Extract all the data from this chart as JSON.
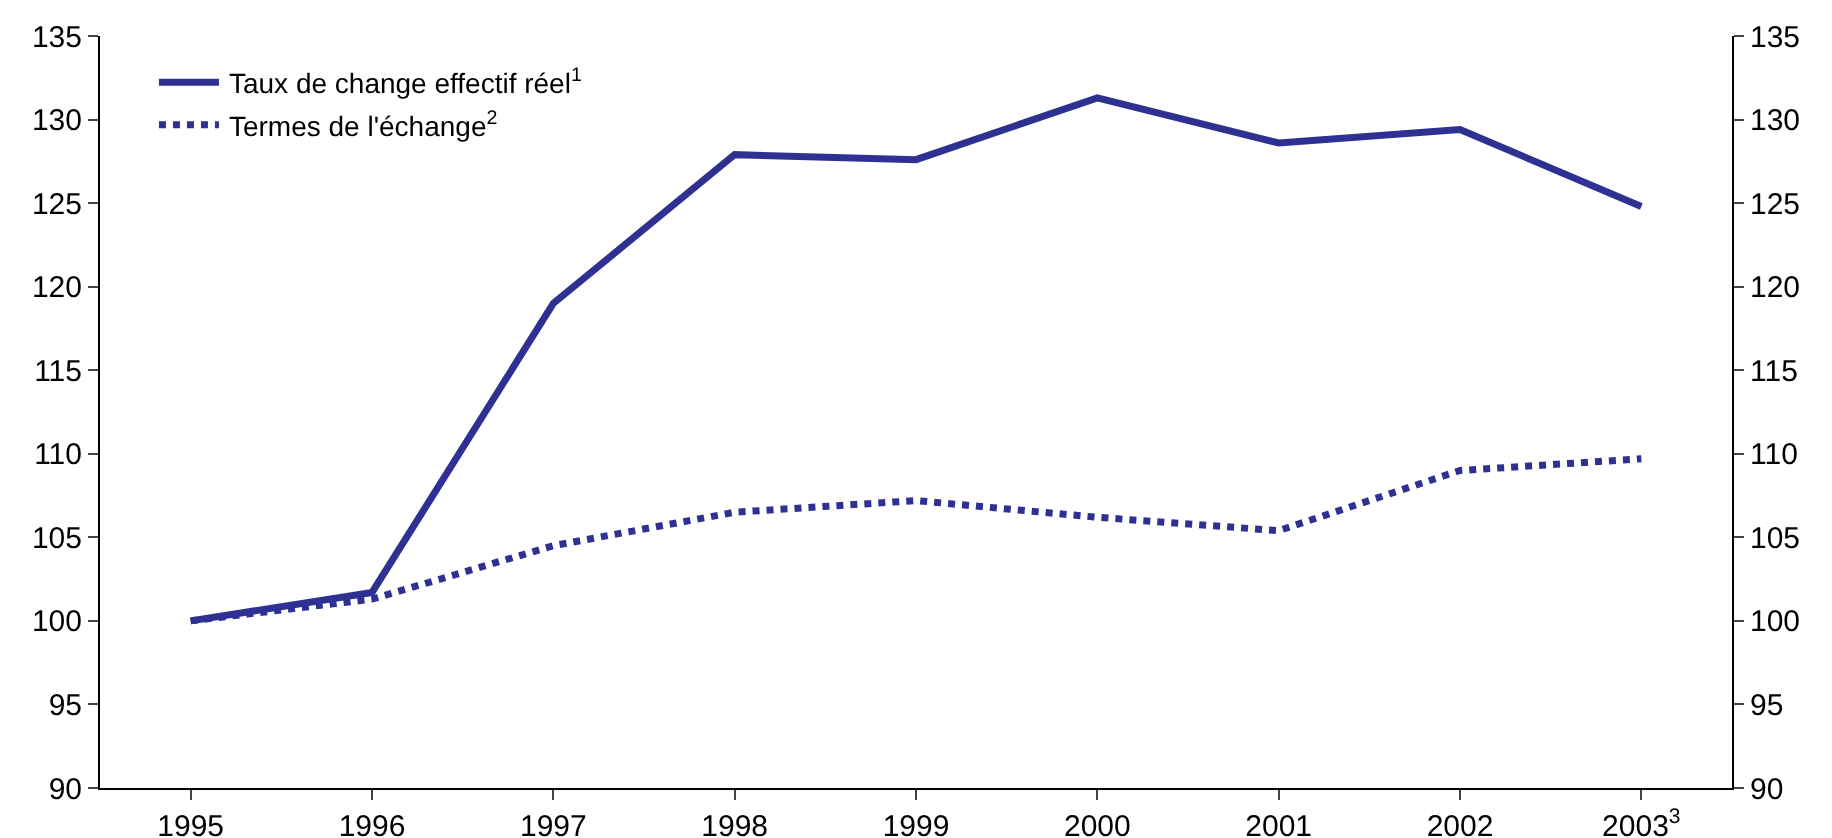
{
  "chart_data": {
    "type": "line",
    "categories": [
      "1995",
      "1996",
      "1997",
      "1998",
      "1999",
      "2000",
      "2001",
      "2002",
      "2003$^{3}$"
    ],
    "series": [
      {
        "name": "Taux de change effectif réel$^{1}$",
        "color": "#2e3192",
        "line_style": "solid",
        "values": [
          100,
          101.7,
          119.0,
          127.9,
          127.6,
          131.3,
          128.6,
          129.4,
          124.8
        ]
      },
      {
        "name": "Termes de l'échange$^{2}$",
        "color": "#2e3192",
        "line_style": "dotted",
        "values": [
          100,
          101.3,
          104.5,
          106.5,
          107.2,
          106.2,
          105.4,
          109.0,
          109.7
        ]
      }
    ],
    "ylim": [
      90,
      135
    ],
    "yticks": [
      90,
      95,
      100,
      105,
      110,
      115,
      120,
      125,
      130,
      135
    ],
    "y2lim": [
      90,
      135
    ],
    "y2ticks": [
      90,
      95,
      100,
      105,
      110,
      115,
      120,
      125,
      130,
      135
    ],
    "grid": false,
    "legend": "top left",
    "marker": "none"
  }
}
